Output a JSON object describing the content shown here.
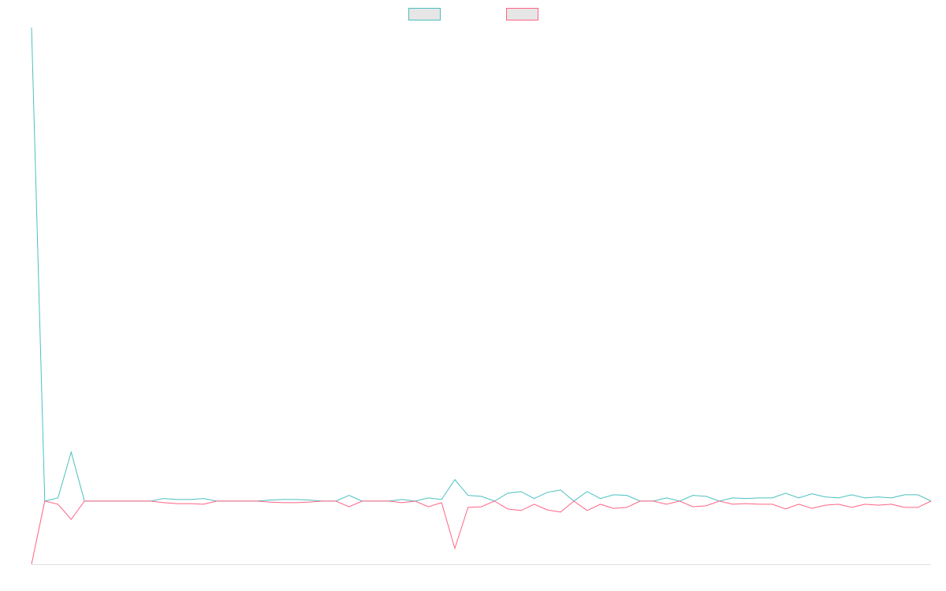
{
  "chart_data": {
    "type": "line",
    "categories": [
      null,
      null,
      null,
      null,
      null,
      null,
      null,
      null,
      null,
      null,
      null,
      null,
      null,
      null,
      null,
      null,
      null,
      null,
      null,
      null,
      null,
      null,
      null,
      null,
      null,
      null,
      null,
      null,
      null,
      null,
      null,
      null,
      null,
      null,
      null,
      null,
      null,
      null,
      null,
      null,
      null,
      null,
      null,
      null,
      null,
      null,
      null,
      null,
      null,
      null,
      null,
      null,
      null,
      null,
      null,
      null,
      null,
      null,
      null,
      null,
      null,
      null,
      null,
      null,
      null,
      null,
      null,
      null,
      null
    ],
    "series": [
      {
        "color": "#4bc0c0",
        "values": [
          15,
          0,
          0.1,
          1.55,
          0,
          0,
          0,
          0,
          0,
          0,
          0.08,
          0.05,
          0.05,
          0.08,
          0,
          0,
          0,
          0,
          0.03,
          0.05,
          0.05,
          0.03,
          0,
          0,
          0.18,
          0,
          0,
          0,
          0.05,
          0,
          0.1,
          0.05,
          0.68,
          0.18,
          0.15,
          0,
          0.25,
          0.3,
          0.08,
          0.28,
          0.35,
          0,
          0.3,
          0.08,
          0.2,
          0.18,
          0,
          0,
          0.1,
          0,
          0.18,
          0.15,
          0,
          0.1,
          0.08,
          0.1,
          0.1,
          0.25,
          0.1,
          0.23,
          0.13,
          0.1,
          0.2,
          0.1,
          0.13,
          0.1,
          0.2,
          0.2,
          0
        ]
      },
      {
        "color": "#ff6384",
        "values": [
          -2,
          0,
          -0.1,
          -0.58,
          0,
          0,
          0,
          0,
          0,
          0,
          -0.05,
          -0.08,
          -0.08,
          -0.1,
          0,
          0,
          0,
          0,
          -0.03,
          -0.05,
          -0.05,
          -0.03,
          0,
          0,
          -0.18,
          0,
          0,
          0,
          -0.05,
          0,
          -0.18,
          -0.05,
          -1.5,
          -0.2,
          -0.18,
          0,
          -0.25,
          -0.3,
          -0.1,
          -0.28,
          -0.35,
          0,
          -0.3,
          -0.1,
          -0.23,
          -0.2,
          0,
          0,
          -0.1,
          0,
          -0.18,
          -0.15,
          0,
          -0.1,
          -0.08,
          -0.1,
          -0.1,
          -0.25,
          -0.1,
          -0.23,
          -0.13,
          -0.1,
          -0.2,
          -0.1,
          -0.13,
          -0.1,
          -0.2,
          -0.2,
          0
        ]
      }
    ],
    "ylim": [
      -2,
      15
    ],
    "grid": false,
    "legend": "top"
  }
}
